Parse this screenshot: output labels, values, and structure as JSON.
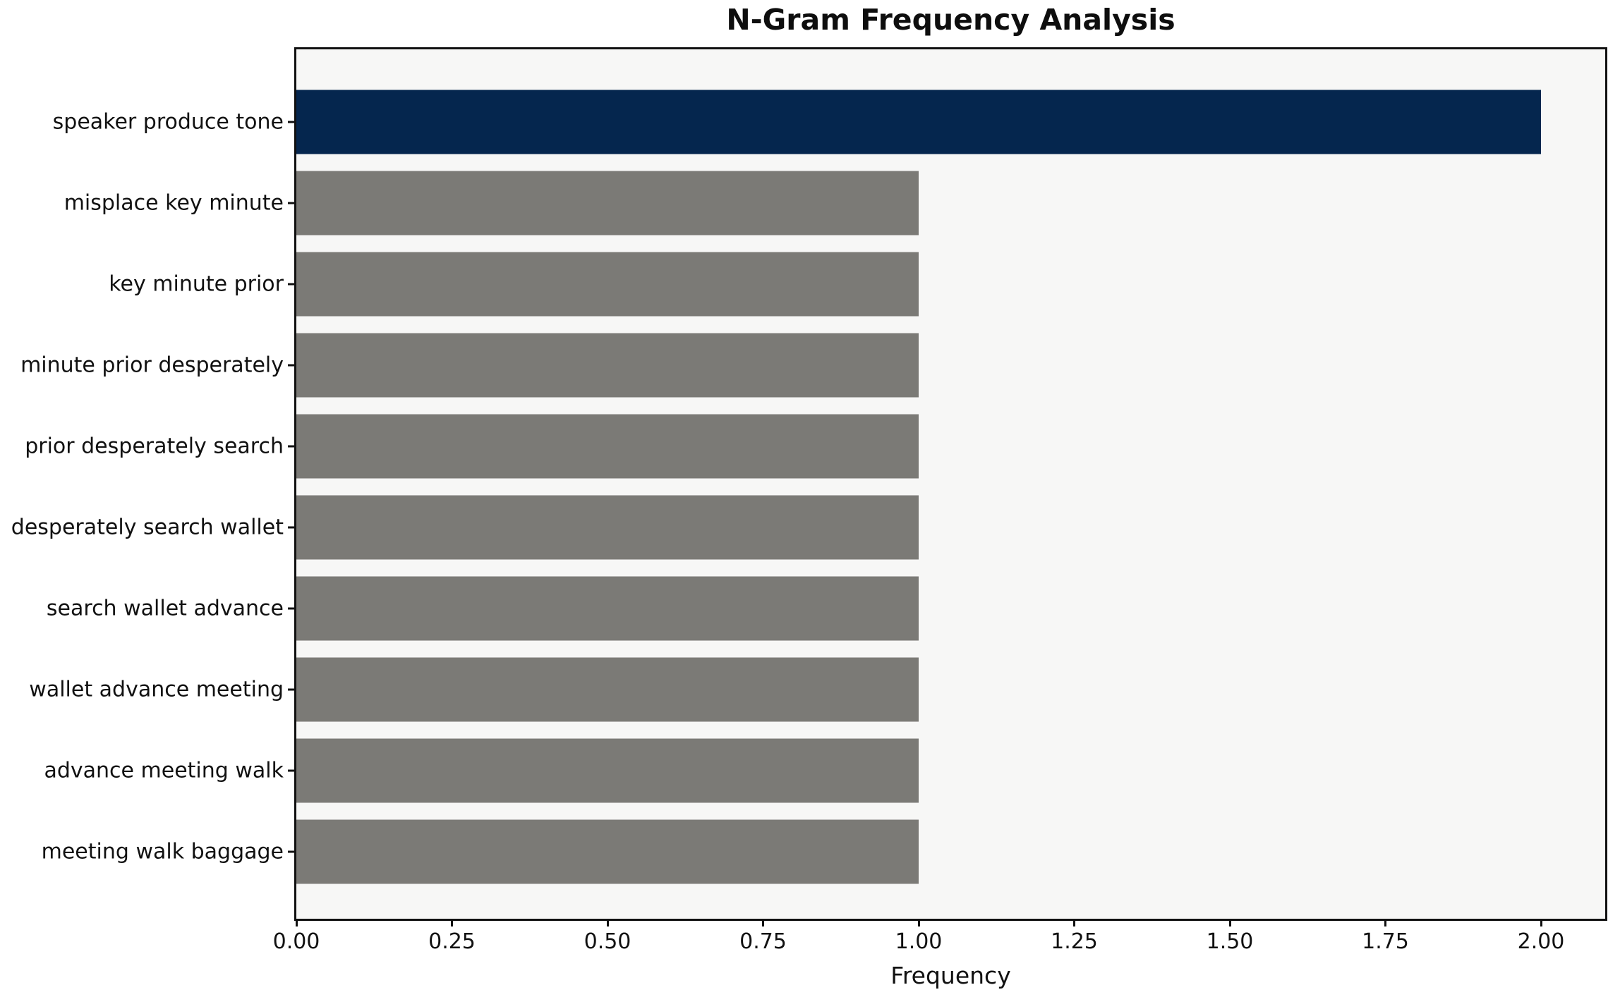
{
  "chart_data": {
    "type": "bar",
    "orientation": "horizontal",
    "title": "N-Gram Frequency Analysis",
    "xlabel": "Frequency",
    "ylabel": "",
    "categories": [
      "speaker produce tone",
      "misplace key minute",
      "key minute prior",
      "minute prior desperately",
      "prior desperately search",
      "desperately search wallet",
      "search wallet advance",
      "wallet advance meeting",
      "advance meeting walk",
      "meeting walk baggage"
    ],
    "values": [
      2,
      1,
      1,
      1,
      1,
      1,
      1,
      1,
      1,
      1
    ],
    "bar_colors": [
      "#05264E",
      "#7B7A76",
      "#7B7A76",
      "#7B7A76",
      "#7B7A76",
      "#7B7A76",
      "#7B7A76",
      "#7B7A76",
      "#7B7A76",
      "#7B7A76"
    ],
    "xlim": [
      0,
      2.1
    ],
    "xticks": {
      "values": [
        0,
        0.25,
        0.5,
        0.75,
        1.0,
        1.25,
        1.5,
        1.75,
        2.0
      ],
      "labels": [
        "0.00",
        "0.25",
        "0.50",
        "0.75",
        "1.00",
        "1.25",
        "1.50",
        "1.75",
        "2.00"
      ]
    },
    "grid": false,
    "legend": null,
    "colors": {
      "highlight": "#05264E",
      "default_bar": "#7B7A76",
      "plot_background": "#F7F7F6",
      "figure_background": "#FFFFFF",
      "spine": "#111111",
      "text": "#111111"
    }
  }
}
